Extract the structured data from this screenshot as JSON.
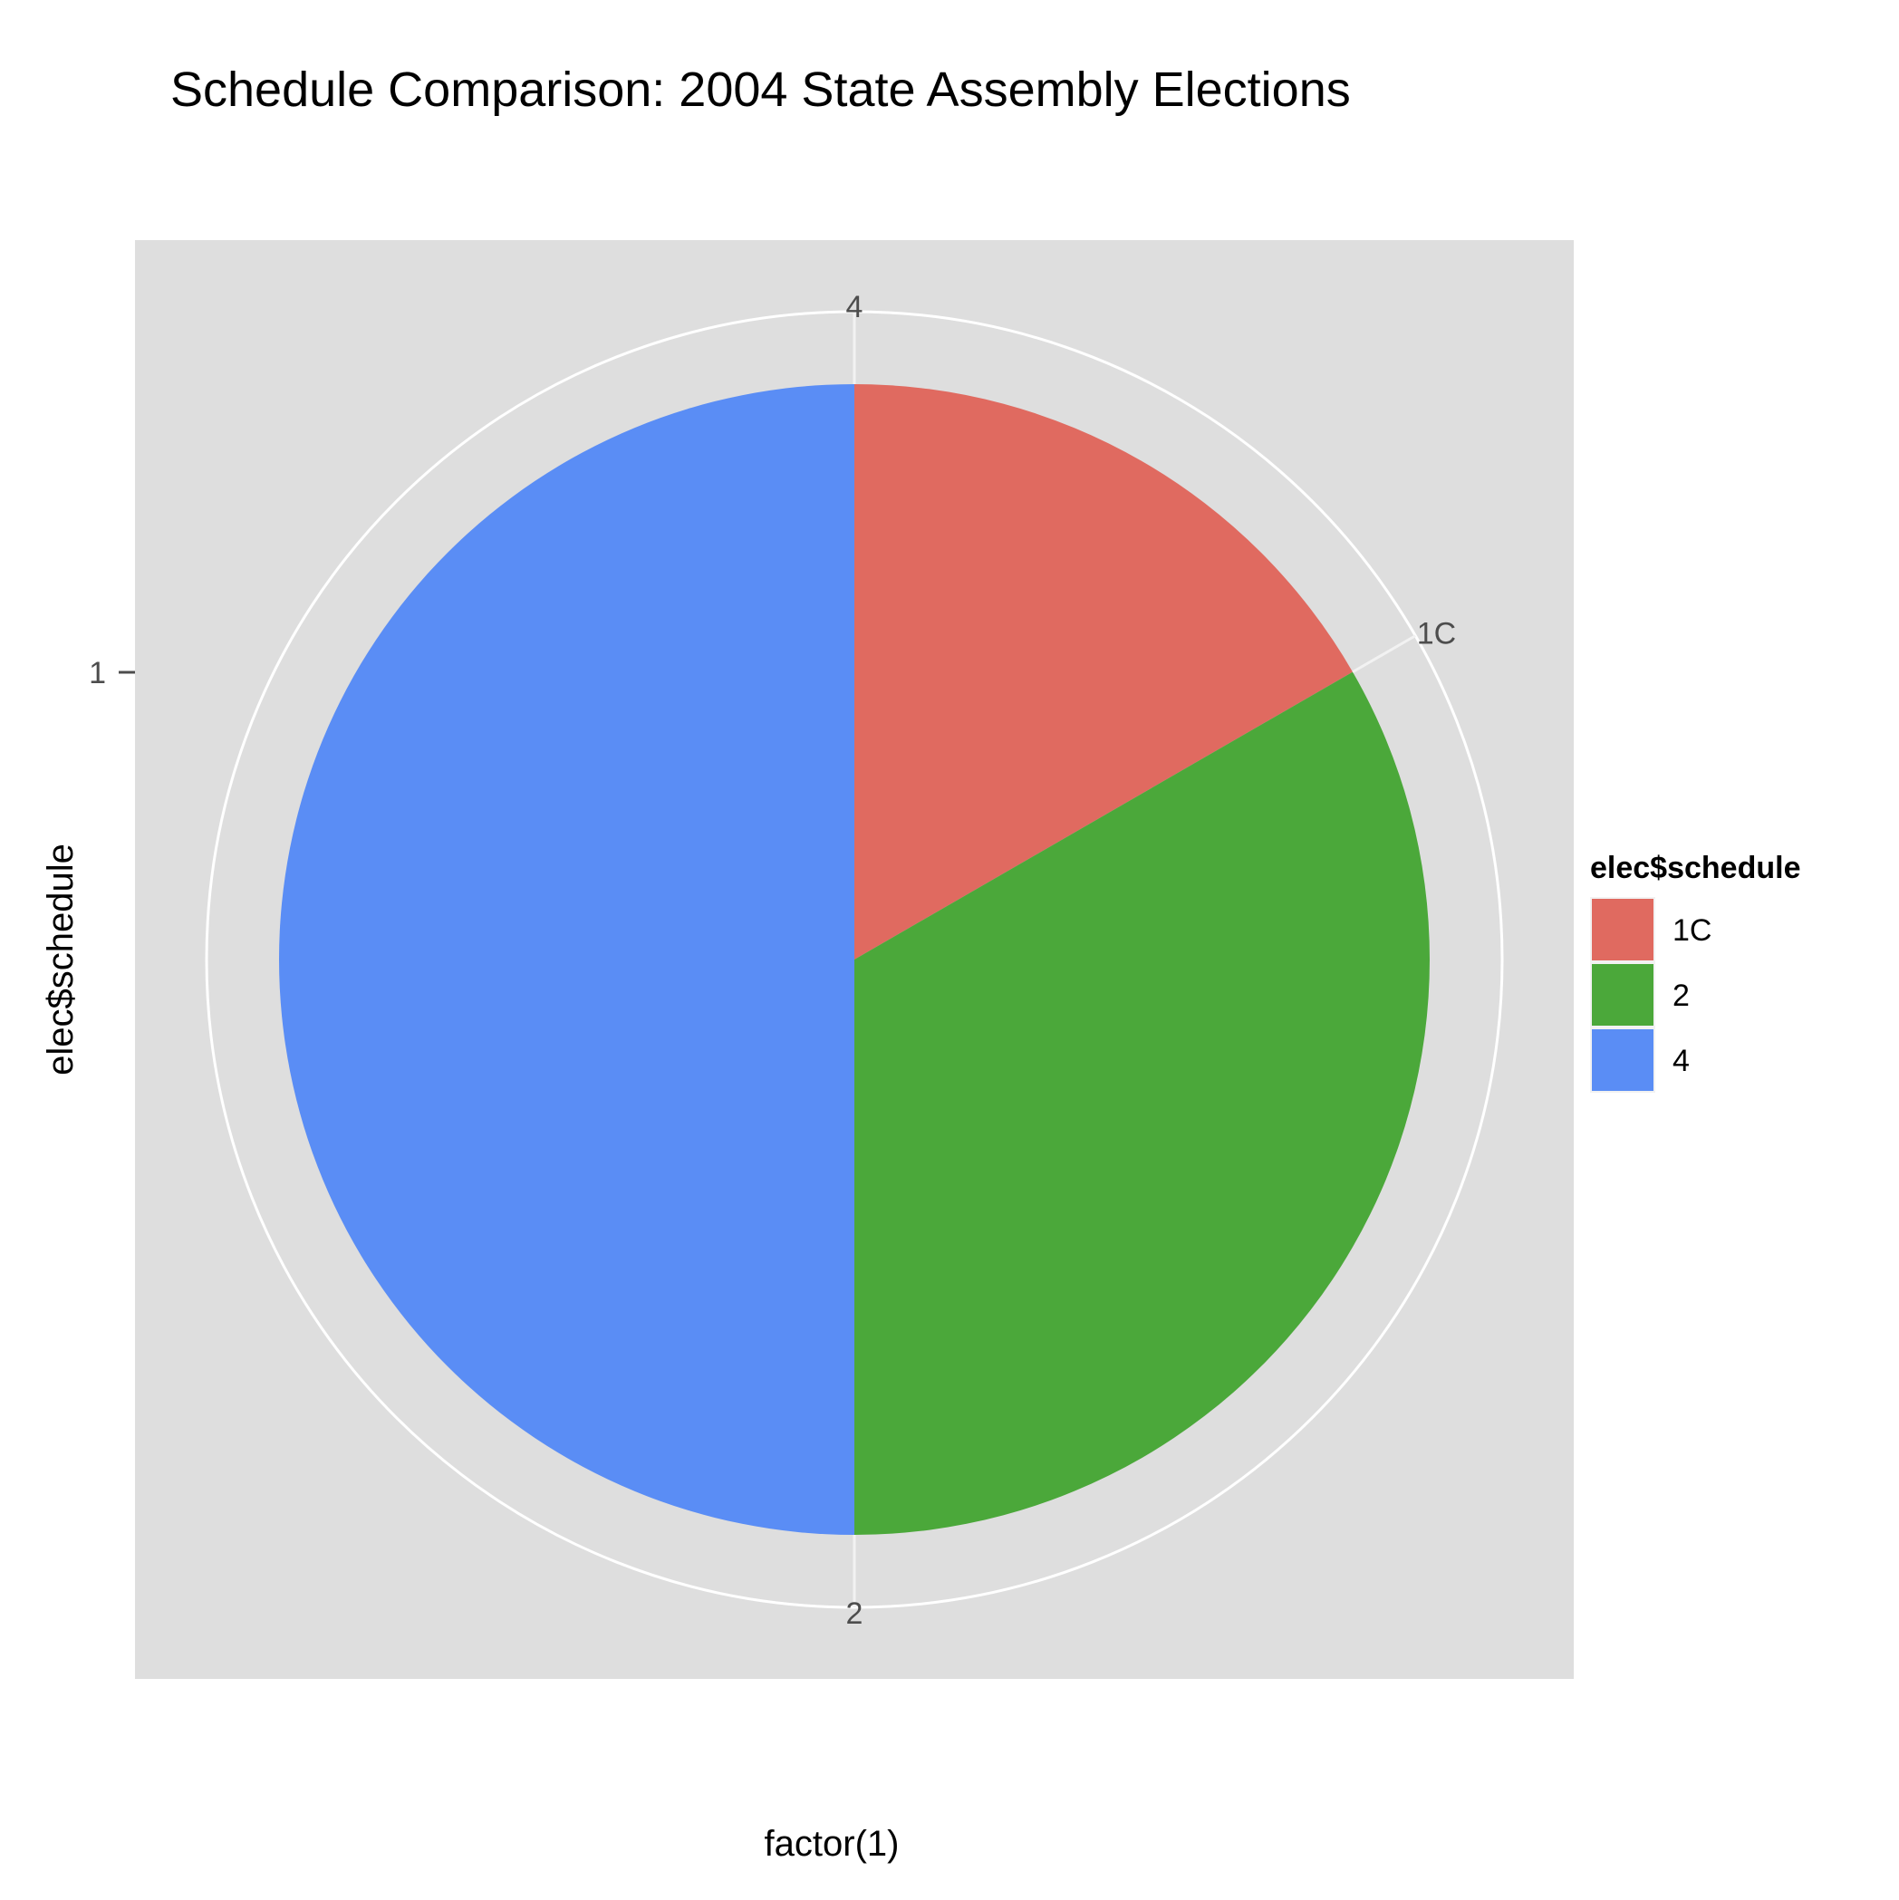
{
  "chart_data": {
    "type": "pie",
    "title": "Schedule Comparison: 2004 State Assembly Elections",
    "xlabel": "factor(1)",
    "ylabel": "elec$schedule",
    "y_tick_labels": [
      "1"
    ],
    "categories": [
      "1C",
      "2",
      "4"
    ],
    "values": [
      0.1667,
      0.3333,
      0.5
    ],
    "colors": [
      "#E06A60",
      "#4BA83A",
      "#5A8DF5"
    ],
    "panel_background": "#DEDEDE",
    "grid": true,
    "legend": {
      "title": "elec$schedule",
      "position": "right",
      "items": [
        "1C",
        "2",
        "4"
      ]
    }
  }
}
